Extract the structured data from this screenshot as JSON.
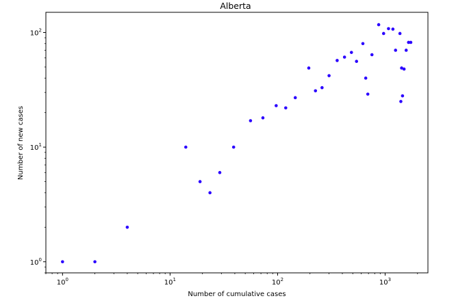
{
  "chart_data": {
    "type": "scatter",
    "title": "Alberta",
    "xlabel": "Number of cumulative cases",
    "ylabel": "Number of new cases",
    "xscale": "log",
    "yscale": "log",
    "xlim": [
      0.7,
      2500
    ],
    "ylim": [
      0.8,
      150
    ],
    "grid": false,
    "marker_color": "#2a00ff",
    "x_ticks": [
      {
        "base": "10",
        "exp": "0",
        "value": 1
      },
      {
        "base": "10",
        "exp": "1",
        "value": 10
      },
      {
        "base": "10",
        "exp": "2",
        "value": 100
      },
      {
        "base": "10",
        "exp": "3",
        "value": 1000
      }
    ],
    "y_ticks": [
      {
        "base": "10",
        "exp": "0",
        "value": 1
      },
      {
        "base": "10",
        "exp": "1",
        "value": 10
      },
      {
        "base": "10",
        "exp": "2",
        "value": 100
      }
    ],
    "points": [
      {
        "x": 1,
        "y": 1
      },
      {
        "x": 2,
        "y": 1
      },
      {
        "x": 4,
        "y": 2
      },
      {
        "x": 14,
        "y": 10
      },
      {
        "x": 19,
        "y": 5
      },
      {
        "x": 23.5,
        "y": 4
      },
      {
        "x": 29,
        "y": 6
      },
      {
        "x": 39,
        "y": 10
      },
      {
        "x": 56,
        "y": 17
      },
      {
        "x": 73,
        "y": 18
      },
      {
        "x": 97,
        "y": 23
      },
      {
        "x": 119,
        "y": 22
      },
      {
        "x": 146,
        "y": 27
      },
      {
        "x": 195,
        "y": 49
      },
      {
        "x": 225,
        "y": 31
      },
      {
        "x": 259,
        "y": 33
      },
      {
        "x": 301,
        "y": 42
      },
      {
        "x": 358,
        "y": 57
      },
      {
        "x": 419,
        "y": 61
      },
      {
        "x": 486,
        "y": 67
      },
      {
        "x": 542,
        "y": 56
      },
      {
        "x": 621,
        "y": 80
      },
      {
        "x": 660,
        "y": 40
      },
      {
        "x": 690,
        "y": 29
      },
      {
        "x": 754,
        "y": 64
      },
      {
        "x": 871,
        "y": 117
      },
      {
        "x": 968,
        "y": 98
      },
      {
        "x": 1075,
        "y": 108
      },
      {
        "x": 1181,
        "y": 107
      },
      {
        "x": 1250,
        "y": 70
      },
      {
        "x": 1373,
        "y": 98
      },
      {
        "x": 1400,
        "y": 25
      },
      {
        "x": 1423,
        "y": 49
      },
      {
        "x": 1451,
        "y": 28
      },
      {
        "x": 1500,
        "y": 48
      },
      {
        "x": 1569,
        "y": 70
      },
      {
        "x": 1651,
        "y": 82
      },
      {
        "x": 1732,
        "y": 82
      }
    ]
  }
}
